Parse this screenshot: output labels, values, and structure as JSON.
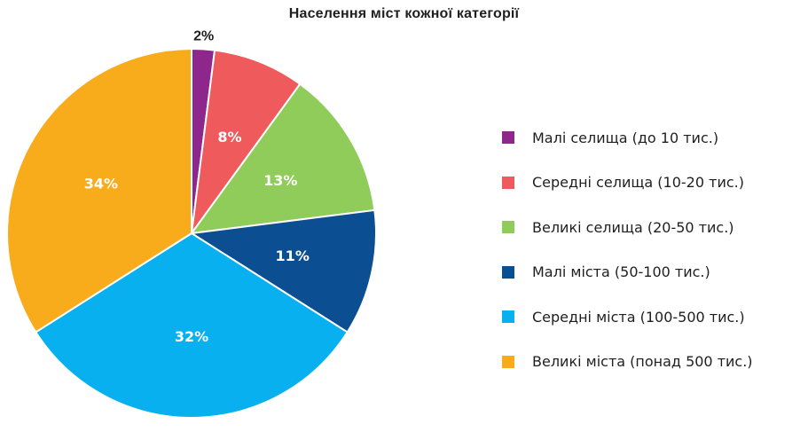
{
  "chart_data": {
    "type": "pie",
    "title": "Населення міст кожної категорії",
    "legend_position": "right",
    "slices": [
      {
        "name": "Малі селища (до 10 тис.)",
        "value": 2,
        "label": "2%",
        "color": "#8e278b"
      },
      {
        "name": "Середні селища (10-20 тис.)",
        "value": 8,
        "label": "8%",
        "color": "#ef5a5d"
      },
      {
        "name": "Великі селища (20-50 тис.)",
        "value": 13,
        "label": "13%",
        "color": "#90cc5a"
      },
      {
        "name": "Малі міста (50-100 тис.)",
        "value": 11,
        "label": "11%",
        "color": "#0b4e91"
      },
      {
        "name": "Середні міста (100-500 тис.)",
        "value": 32,
        "label": "32%",
        "color": "#08b0ef"
      },
      {
        "name": "Великі міста (понад 500 тис.)",
        "value": 34,
        "label": "34%",
        "color": "#f8ac1c"
      }
    ]
  }
}
